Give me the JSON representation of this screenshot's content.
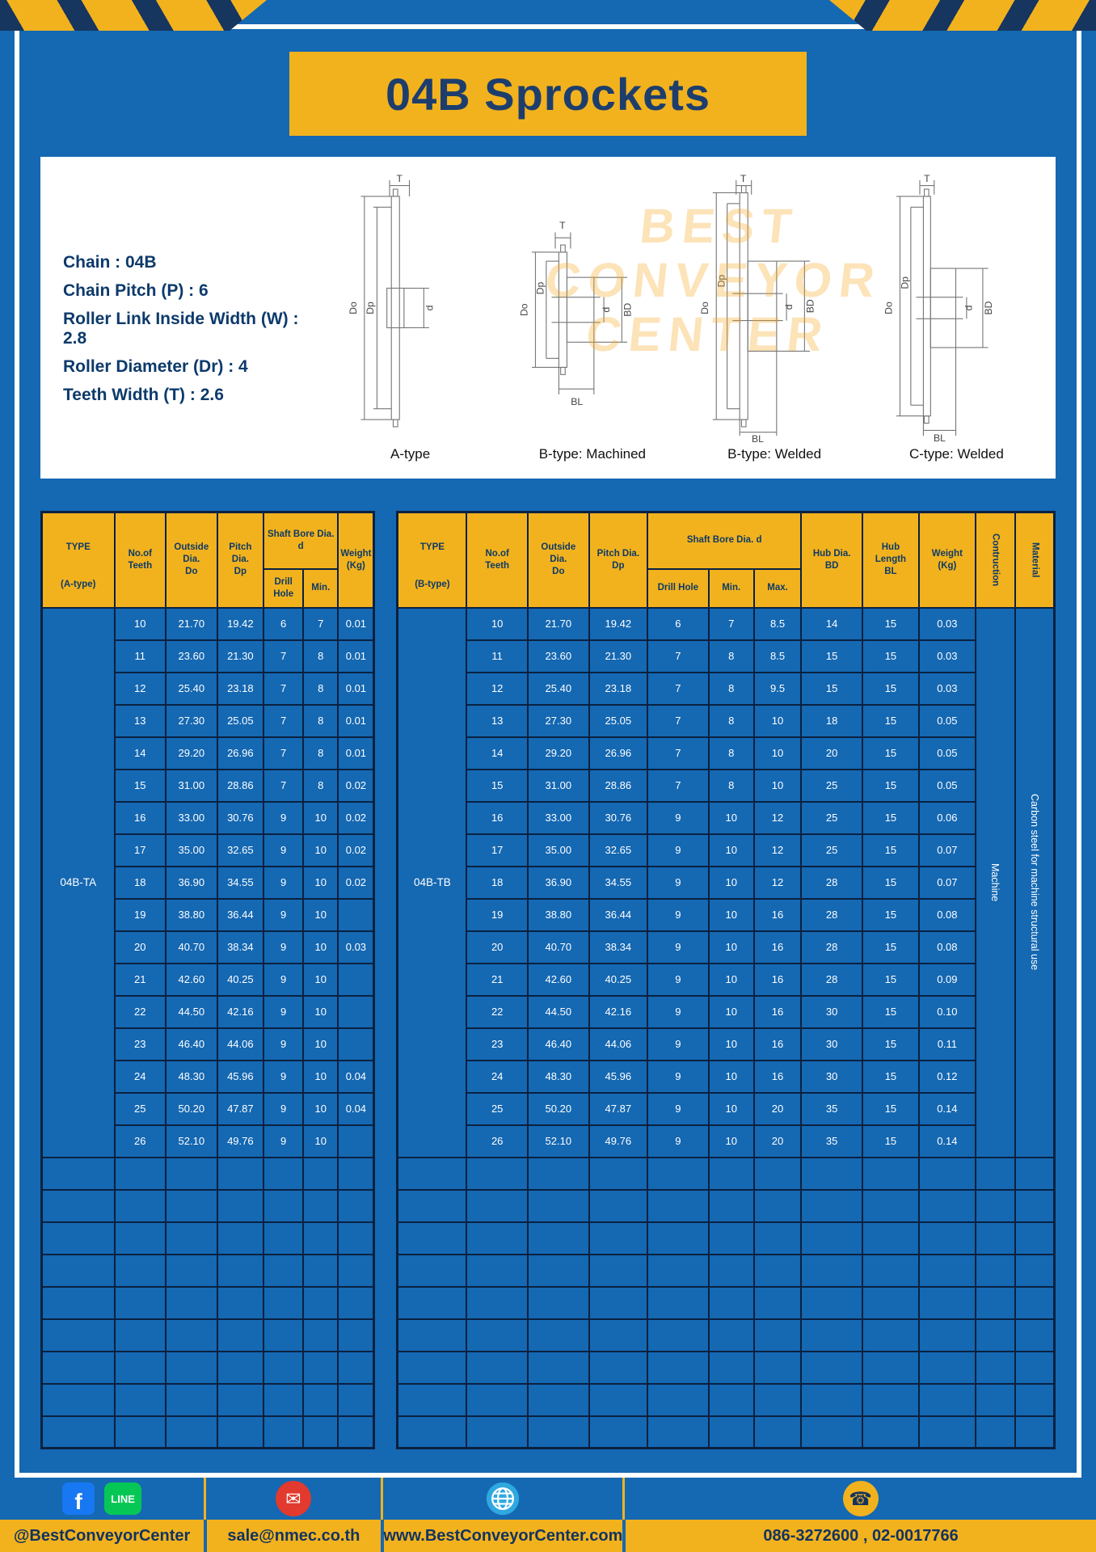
{
  "page": {
    "title": "04B Sprockets"
  },
  "specs": {
    "lines": [
      "Chain : 04B",
      "Chain Pitch (P) : 6",
      "Roller Link Inside Width (W) : 2.8",
      "Roller Diameter (Dr) : 4",
      "Teeth Width (T) : 2.6"
    ]
  },
  "diagrams": {
    "captions": [
      "A-type",
      "B-type: Machined",
      "B-type: Welded",
      "C-type: Welded"
    ],
    "dims": {
      "T": "T",
      "Do": "Do",
      "Dp": "Dp",
      "d": "d",
      "BD": "BD",
      "BL": "BL"
    },
    "watermark": [
      "BEST",
      "CONVEYOR",
      "CENTER"
    ]
  },
  "table_a": {
    "header": {
      "type_top": "TYPE",
      "type_bottom": "(A-type)",
      "teeth": "No.of\nTeeth",
      "outside": "Outside\nDia.\nDo",
      "pitch": "Pitch Dia.\nDp",
      "shaft_bore": "Shaft Bore Dia. d",
      "drill": "Drill Hole",
      "min": "Min.",
      "weight": "Weight\n(Kg)"
    },
    "type_value": "04B-TA",
    "empty_rows": 9,
    "total_cols": 7,
    "rows": [
      [
        "10",
        "21.70",
        "19.42",
        "6",
        "7",
        "0.01"
      ],
      [
        "11",
        "23.60",
        "21.30",
        "7",
        "8",
        "0.01"
      ],
      [
        "12",
        "25.40",
        "23.18",
        "7",
        "8",
        "0.01"
      ],
      [
        "13",
        "27.30",
        "25.05",
        "7",
        "8",
        "0.01"
      ],
      [
        "14",
        "29.20",
        "26.96",
        "7",
        "8",
        "0.01"
      ],
      [
        "15",
        "31.00",
        "28.86",
        "7",
        "8",
        "0.02"
      ],
      [
        "16",
        "33.00",
        "30.76",
        "9",
        "10",
        "0.02"
      ],
      [
        "17",
        "35.00",
        "32.65",
        "9",
        "10",
        "0.02"
      ],
      [
        "18",
        "36.90",
        "34.55",
        "9",
        "10",
        "0.02"
      ],
      [
        "19",
        "38.80",
        "36.44",
        "9",
        "10",
        ""
      ],
      [
        "20",
        "40.70",
        "38.34",
        "9",
        "10",
        "0.03"
      ],
      [
        "21",
        "42.60",
        "40.25",
        "9",
        "10",
        ""
      ],
      [
        "22",
        "44.50",
        "42.16",
        "9",
        "10",
        ""
      ],
      [
        "23",
        "46.40",
        "44.06",
        "9",
        "10",
        ""
      ],
      [
        "24",
        "48.30",
        "45.96",
        "9",
        "10",
        "0.04"
      ],
      [
        "25",
        "50.20",
        "47.87",
        "9",
        "10",
        "0.04"
      ],
      [
        "26",
        "52.10",
        "49.76",
        "9",
        "10",
        ""
      ]
    ]
  },
  "table_b": {
    "header": {
      "type_top": "TYPE",
      "type_bottom": "(B-type)",
      "teeth": "No.of\nTeeth",
      "outside": "Outside\nDia.\nDo",
      "pitch": "Pitch Dia.\nDp",
      "shaft_bore": "Shaft Bore Dia. d",
      "drill": "Drill Hole",
      "min": "Min.",
      "max": "Max.",
      "hub_dia": "Hub Dia.\nBD",
      "hub_len": "Hub\nLength\nBL",
      "weight": "Weight\n(Kg)",
      "contruction": "Contruction",
      "material": "Material"
    },
    "type_value": "04B-TB",
    "construction_value": "Machine",
    "material_value": "Carbon steel for machine structural use",
    "empty_rows": 9,
    "total_cols": 12,
    "rows": [
      [
        "10",
        "21.70",
        "19.42",
        "6",
        "7",
        "8.5",
        "14",
        "15",
        "0.03"
      ],
      [
        "11",
        "23.60",
        "21.30",
        "7",
        "8",
        "8.5",
        "15",
        "15",
        "0.03"
      ],
      [
        "12",
        "25.40",
        "23.18",
        "7",
        "8",
        "9.5",
        "15",
        "15",
        "0.03"
      ],
      [
        "13",
        "27.30",
        "25.05",
        "7",
        "8",
        "10",
        "18",
        "15",
        "0.05"
      ],
      [
        "14",
        "29.20",
        "26.96",
        "7",
        "8",
        "10",
        "20",
        "15",
        "0.05"
      ],
      [
        "15",
        "31.00",
        "28.86",
        "7",
        "8",
        "10",
        "25",
        "15",
        "0.05"
      ],
      [
        "16",
        "33.00",
        "30.76",
        "9",
        "10",
        "12",
        "25",
        "15",
        "0.06"
      ],
      [
        "17",
        "35.00",
        "32.65",
        "9",
        "10",
        "12",
        "25",
        "15",
        "0.07"
      ],
      [
        "18",
        "36.90",
        "34.55",
        "9",
        "10",
        "12",
        "28",
        "15",
        "0.07"
      ],
      [
        "19",
        "38.80",
        "36.44",
        "9",
        "10",
        "16",
        "28",
        "15",
        "0.08"
      ],
      [
        "20",
        "40.70",
        "38.34",
        "9",
        "10",
        "16",
        "28",
        "15",
        "0.08"
      ],
      [
        "21",
        "42.60",
        "40.25",
        "9",
        "10",
        "16",
        "28",
        "15",
        "0.09"
      ],
      [
        "22",
        "44.50",
        "42.16",
        "9",
        "10",
        "16",
        "30",
        "15",
        "0.10"
      ],
      [
        "23",
        "46.40",
        "44.06",
        "9",
        "10",
        "16",
        "30",
        "15",
        "0.11"
      ],
      [
        "24",
        "48.30",
        "45.96",
        "9",
        "10",
        "16",
        "30",
        "15",
        "0.12"
      ],
      [
        "25",
        "50.20",
        "47.87",
        "9",
        "10",
        "20",
        "35",
        "15",
        "0.14"
      ],
      [
        "26",
        "52.10",
        "49.76",
        "9",
        "10",
        "20",
        "35",
        "15",
        "0.14"
      ]
    ]
  },
  "footer": {
    "facebook_glyph": "f",
    "line_glyph": "LINE",
    "mail_glyph": "✉",
    "phone_glyph": "☎",
    "labels": [
      "@BestConveyorCenter",
      "sale@nmec.co.th",
      "www.BestConveyorCenter.com",
      "086-3272600 , 02-0017766"
    ]
  }
}
